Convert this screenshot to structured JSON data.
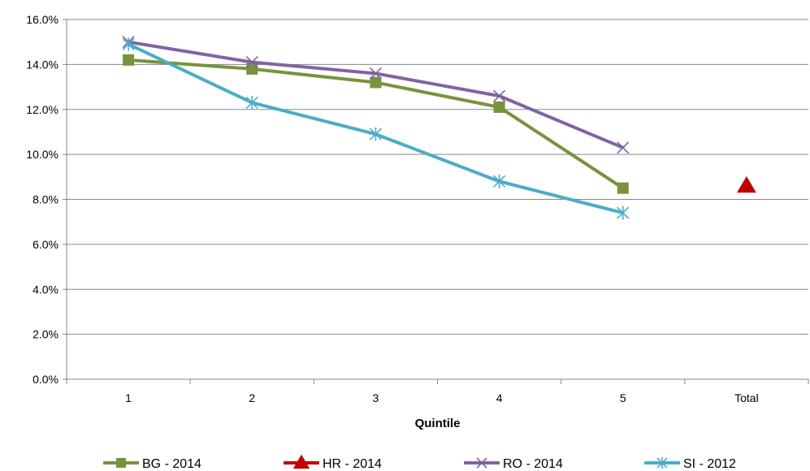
{
  "chart_data": {
    "type": "line",
    "title": "",
    "xlabel": "Quintile",
    "ylabel": "",
    "categories": [
      "1",
      "2",
      "3",
      "4",
      "5",
      "Total"
    ],
    "ylim": [
      0,
      16
    ],
    "yticks": [
      0,
      2,
      4,
      6,
      8,
      10,
      12,
      14,
      16
    ],
    "ytick_labels": [
      "0.0%",
      "2.0%",
      "4.0%",
      "6.0%",
      "8.0%",
      "10.0%",
      "12.0%",
      "14.0%",
      "16.0%"
    ],
    "grid": true,
    "legend_position": "bottom",
    "series": [
      {
        "name": "BG - 2014",
        "color": "#77933C",
        "marker": "square",
        "values": [
          14.2,
          13.8,
          13.2,
          12.1,
          8.5,
          null
        ]
      },
      {
        "name": "HR - 2014",
        "color": "#C00000",
        "marker": "triangle",
        "values": [
          null,
          null,
          null,
          null,
          null,
          8.6
        ]
      },
      {
        "name": "RO - 2014",
        "color": "#8064A2",
        "marker": "x",
        "values": [
          15.0,
          14.1,
          13.6,
          12.6,
          10.3,
          null
        ]
      },
      {
        "name": "SI - 2012",
        "color": "#4BACC6",
        "marker": "star",
        "values": [
          14.9,
          12.3,
          10.9,
          8.8,
          7.4,
          null
        ]
      }
    ]
  }
}
